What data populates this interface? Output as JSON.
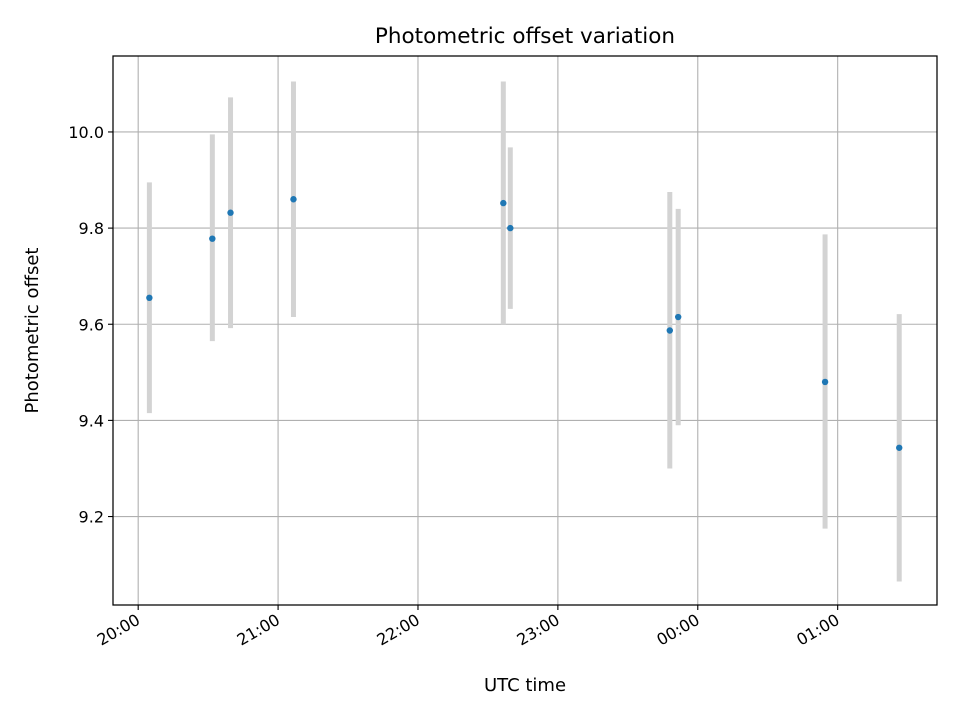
{
  "chart_data": {
    "type": "scatter",
    "title": "Photometric offset variation",
    "xlabel": "UTC time",
    "ylabel": "Photometric offset",
    "grid": true,
    "x_unit": "hours since 20:00 UTC",
    "xlim": [
      -0.18,
      5.71
    ],
    "ylim": [
      9.016,
      10.158
    ],
    "x_ticks": [
      {
        "value": 0,
        "label": "20:00"
      },
      {
        "value": 1,
        "label": "21:00"
      },
      {
        "value": 2,
        "label": "22:00"
      },
      {
        "value": 3,
        "label": "23:00"
      },
      {
        "value": 4,
        "label": "00:00"
      },
      {
        "value": 5,
        "label": "01:00"
      }
    ],
    "y_ticks": [
      {
        "value": 9.2,
        "label": "9.2"
      },
      {
        "value": 9.4,
        "label": "9.4"
      },
      {
        "value": 9.6,
        "label": "9.6"
      },
      {
        "value": 9.8,
        "label": "9.8"
      },
      {
        "value": 10.0,
        "label": "10.0"
      }
    ],
    "points": [
      {
        "x": 0.08,
        "y": 9.655,
        "err_low": 9.415,
        "err_high": 9.895
      },
      {
        "x": 0.53,
        "y": 9.778,
        "err_low": 9.565,
        "err_high": 9.995
      },
      {
        "x": 0.66,
        "y": 9.832,
        "err_low": 9.592,
        "err_high": 10.072
      },
      {
        "x": 1.11,
        "y": 9.86,
        "err_low": 9.615,
        "err_high": 10.105
      },
      {
        "x": 2.61,
        "y": 9.852,
        "err_low": 9.6,
        "err_high": 10.105
      },
      {
        "x": 2.66,
        "y": 9.8,
        "err_low": 9.632,
        "err_high": 9.968
      },
      {
        "x": 3.8,
        "y": 9.587,
        "err_low": 9.3,
        "err_high": 9.875
      },
      {
        "x": 3.86,
        "y": 9.615,
        "err_low": 9.39,
        "err_high": 9.84
      },
      {
        "x": 4.91,
        "y": 9.48,
        "err_low": 9.175,
        "err_high": 9.787
      },
      {
        "x": 5.44,
        "y": 9.343,
        "err_low": 9.065,
        "err_high": 9.621
      }
    ],
    "colors": {
      "marker": "#1f77b4",
      "errorbar": "#d3d3d3",
      "grid": "#b0b0b0",
      "axis": "#000000"
    }
  }
}
